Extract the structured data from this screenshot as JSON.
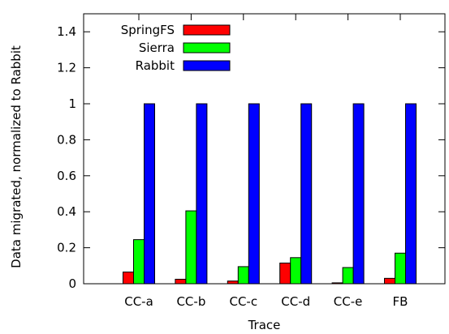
{
  "chart_data": {
    "type": "bar",
    "title": "",
    "xlabel": "Trace",
    "ylabel": "Data migrated, normalized to Rabbit",
    "ylim": [
      0,
      1.5
    ],
    "yticks": [
      "0",
      "0.2",
      "0.4",
      "0.6",
      "0.8",
      "1",
      "1.2",
      "1.4"
    ],
    "categories": [
      "CC-a",
      "CC-b",
      "CC-c",
      "CC-d",
      "CC-e",
      "FB"
    ],
    "legend_position": "top-left",
    "grid": false,
    "series": [
      {
        "name": "SpringFS",
        "color": "#ff0000",
        "values": [
          0.065,
          0.025,
          0.015,
          0.115,
          0.005,
          0.03
        ]
      },
      {
        "name": "Sierra",
        "color": "#00ff00",
        "values": [
          0.245,
          0.405,
          0.095,
          0.145,
          0.09,
          0.17
        ]
      },
      {
        "name": "Rabbit",
        "color": "#0000ff",
        "values": [
          1.0,
          1.0,
          1.0,
          1.0,
          1.0,
          1.0
        ]
      }
    ]
  }
}
